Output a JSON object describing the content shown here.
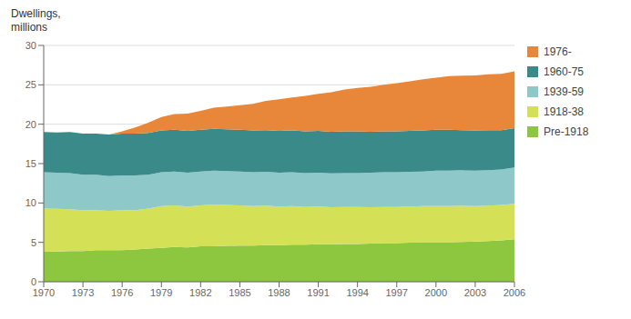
{
  "chart_data": {
    "type": "area",
    "stacked": true,
    "ylabel": "Dwellings,\nmillions",
    "x": [
      1970,
      1971,
      1972,
      1973,
      1974,
      1975,
      1976,
      1977,
      1978,
      1979,
      1980,
      1981,
      1982,
      1983,
      1984,
      1985,
      1986,
      1987,
      1988,
      1989,
      1990,
      1991,
      1992,
      1993,
      1994,
      1995,
      1996,
      1997,
      1998,
      1999,
      2000,
      2001,
      2002,
      2003,
      2004,
      2005,
      2006
    ],
    "series": [
      {
        "name": "Pre-1918",
        "color": "#8dc63f",
        "values": [
          3.8,
          3.85,
          3.9,
          3.9,
          4.0,
          4.0,
          4.0,
          4.1,
          4.2,
          4.3,
          4.4,
          4.35,
          4.5,
          4.5,
          4.55,
          4.6,
          4.6,
          4.65,
          4.65,
          4.7,
          4.7,
          4.75,
          4.75,
          4.8,
          4.8,
          4.85,
          4.9,
          4.9,
          4.95,
          5.0,
          5.0,
          5.0,
          5.05,
          5.1,
          5.15,
          5.25,
          5.4
        ]
      },
      {
        "name": "1918-38",
        "color": "#d4e157",
        "values": [
          5.5,
          5.4,
          5.3,
          5.2,
          5.1,
          5.0,
          5.1,
          5.0,
          5.1,
          5.3,
          5.3,
          5.2,
          5.2,
          5.3,
          5.2,
          5.1,
          5.0,
          5.0,
          4.9,
          4.9,
          4.8,
          4.8,
          4.7,
          4.7,
          4.7,
          4.6,
          4.6,
          4.6,
          4.6,
          4.6,
          4.6,
          4.6,
          4.6,
          4.5,
          4.5,
          4.5,
          4.5
        ]
      },
      {
        "name": "1939-59",
        "color": "#8ec8c8",
        "values": [
          4.6,
          4.6,
          4.6,
          4.5,
          4.5,
          4.4,
          4.4,
          4.4,
          4.3,
          4.3,
          4.3,
          4.3,
          4.3,
          4.3,
          4.3,
          4.3,
          4.3,
          4.3,
          4.3,
          4.3,
          4.3,
          4.3,
          4.3,
          4.3,
          4.3,
          4.4,
          4.4,
          4.4,
          4.4,
          4.4,
          4.5,
          4.5,
          4.5,
          4.5,
          4.5,
          4.5,
          4.6
        ]
      },
      {
        "name": "1960-75",
        "color": "#3a8a8a",
        "values": [
          5.1,
          5.1,
          5.2,
          5.2,
          5.2,
          5.3,
          5.3,
          5.3,
          5.3,
          5.3,
          5.3,
          5.3,
          5.3,
          5.3,
          5.3,
          5.3,
          5.3,
          5.3,
          5.3,
          5.3,
          5.3,
          5.3,
          5.3,
          5.3,
          5.3,
          5.2,
          5.2,
          5.2,
          5.2,
          5.2,
          5.2,
          5.2,
          5.1,
          5.1,
          5.1,
          5.0,
          5.0
        ]
      },
      {
        "name": "1976-",
        "color": "#e8873a",
        "values": [
          0.0,
          0.0,
          0.0,
          0.0,
          0.0,
          0.0,
          0.3,
          0.8,
          1.3,
          1.7,
          2.0,
          2.2,
          2.4,
          2.7,
          2.9,
          3.1,
          3.4,
          3.7,
          4.0,
          4.2,
          4.5,
          4.7,
          5.0,
          5.3,
          5.5,
          5.7,
          5.9,
          6.1,
          6.3,
          6.5,
          6.6,
          6.8,
          6.9,
          7.0,
          7.1,
          7.15,
          7.2
        ]
      }
    ],
    "xlim": [
      1970,
      2006
    ],
    "xticks": [
      1970,
      1973,
      1976,
      1979,
      1982,
      1985,
      1988,
      1991,
      1994,
      1997,
      2000,
      2003,
      2006
    ],
    "ylim": [
      0,
      30
    ],
    "yticks": [
      0,
      5,
      10,
      15,
      20,
      25,
      30
    ],
    "grid": true,
    "legend": "right"
  }
}
